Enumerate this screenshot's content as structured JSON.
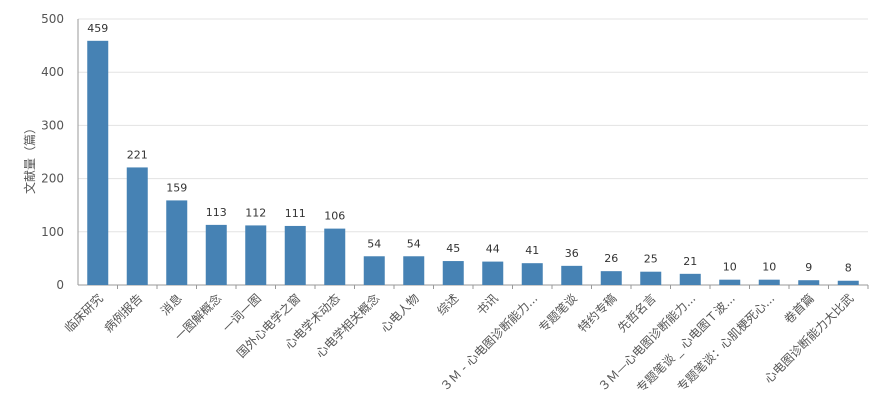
{
  "chart_data": {
    "type": "bar",
    "title": "",
    "xlabel": "",
    "ylabel": "文献量（篇）",
    "ylim": [
      0,
      500
    ],
    "yticks": [
      0,
      100,
      200,
      300,
      400,
      500
    ],
    "grid": true,
    "bar_color": "#4682b4",
    "categories": [
      "临床研究",
      "病例报告",
      "消息",
      "一图解概念",
      "一词一图",
      "国外心电学之窗",
      "心电学术动态",
      "心电学相关概念",
      "心电人物",
      "综述",
      "书讯",
      "３Ｍ - 心电图诊断能力...",
      "专题笔谈",
      "特约专稿",
      "先哲名言",
      "３Ｍ—心电图诊断能力...",
      "专题笔谈 _ 心电图Ｔ波...",
      "专题笔谈：心肌梗死心...",
      "卷首篇",
      "心电图诊断能力大比武"
    ],
    "values": [
      459,
      221,
      159,
      113,
      112,
      111,
      106,
      54,
      54,
      45,
      44,
      41,
      36,
      26,
      25,
      21,
      10,
      10,
      9,
      8
    ]
  }
}
